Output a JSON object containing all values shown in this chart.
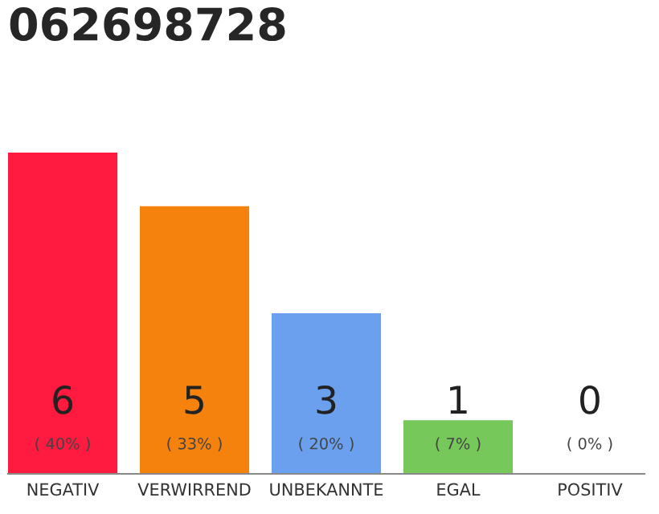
{
  "chart_data": {
    "type": "bar",
    "title": "062698728",
    "categories": [
      "NEGATIV",
      "VERWIRREND",
      "UNBEKANNTE",
      "EGAL",
      "POSITIV"
    ],
    "values": [
      6,
      5,
      3,
      1,
      0
    ],
    "colors": [
      "#ff1a40",
      "#f5820d",
      "#6aa0ee",
      "#77c85a",
      "#cccccc"
    ],
    "ylim": [
      0,
      6
    ],
    "tick_labels": "x",
    "data_labels": true,
    "grid": false,
    "legend": false,
    "annotations": [
      "( 40% )",
      "( 33% )",
      "( 20% )",
      "( 7% )",
      "( 0% )"
    ]
  }
}
